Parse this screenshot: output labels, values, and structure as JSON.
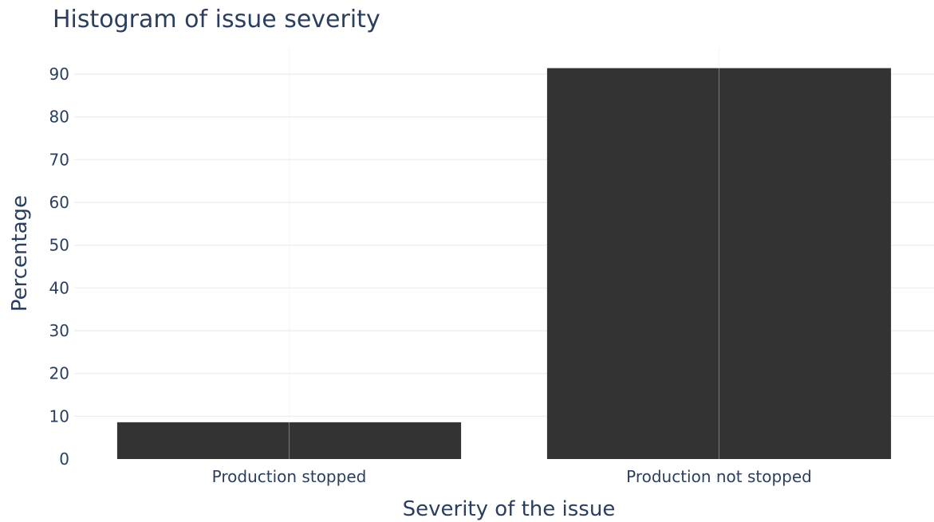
{
  "chart_data": {
    "type": "bar",
    "title": "Histogram of issue severity",
    "xlabel": "Severity of the issue",
    "ylabel": "Percentage",
    "categories": [
      "Production stopped",
      "Production not stopped"
    ],
    "values": [
      8.6,
      91.4
    ],
    "ylim": [
      0,
      96
    ],
    "yticks": [
      "0",
      "10",
      "20",
      "30",
      "40",
      "50",
      "60",
      "70",
      "80",
      "90"
    ],
    "bar_color": "#333333",
    "grid": true,
    "legend": "none"
  }
}
